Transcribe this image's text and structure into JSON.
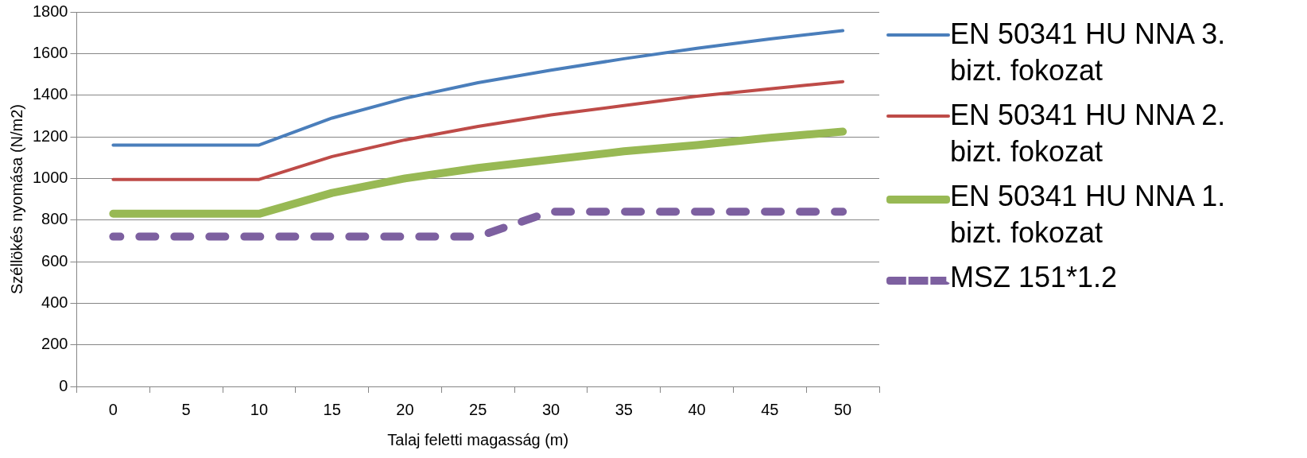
{
  "chart_data": {
    "type": "line",
    "xlabel": "Talaj feletti magasság (m)",
    "ylabel": "Széllökés nyomása (N/m2)",
    "categories": [
      "0",
      "5",
      "10",
      "15",
      "20",
      "25",
      "30",
      "35",
      "40",
      "45",
      "50"
    ],
    "series": [
      {
        "name": "EN 50341 HU NNA 3. bizt. fokozat",
        "color": "#4a7ebb",
        "values": [
          1160,
          1160,
          1160,
          1290,
          1385,
          1460,
          1520,
          1575,
          1625,
          1670,
          1710
        ]
      },
      {
        "name": "EN 50341 HU NNA 2. bizt. fokozat",
        "color": "#be4b48",
        "values": [
          995,
          995,
          995,
          1105,
          1185,
          1250,
          1305,
          1350,
          1395,
          1430,
          1465
        ]
      },
      {
        "name": "EN 50341 HU NNA 1. bizt. fokozat",
        "color": "#98b954",
        "values": [
          830,
          830,
          830,
          930,
          1000,
          1050,
          1090,
          1130,
          1160,
          1195,
          1225
        ]
      },
      {
        "name": "MSZ 151*1.2",
        "color": "#7d60a0",
        "line_style": "dashed",
        "values": [
          720,
          720,
          720,
          720,
          720,
          720,
          840,
          840,
          840,
          840,
          840
        ]
      }
    ],
    "ylim": [
      0,
      1800
    ],
    "yticks": [
      0,
      200,
      400,
      600,
      800,
      1000,
      1200,
      1400,
      1600,
      1800
    ],
    "grid": "y",
    "legend": "right",
    "marker": "none"
  }
}
